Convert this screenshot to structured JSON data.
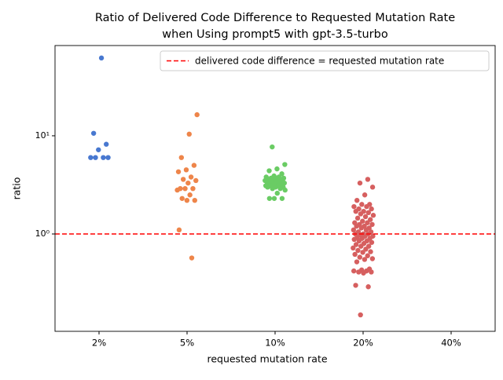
{
  "chart_data": {
    "type": "strip",
    "title": [
      "Ratio of Delivered Code Difference to Requested Mutation Rate",
      "when Using prompt5 with gpt-3.5-turbo"
    ],
    "x_label": "requested mutation rate",
    "y_label": "ratio",
    "categories": [
      "2%",
      "5%",
      "10%",
      "20%",
      "40%"
    ],
    "colors": [
      "#4878d0",
      "#ee854a",
      "#6acc64",
      "#d65f5f",
      "#956cb4"
    ],
    "values": [
      [
        62,
        10.6,
        8.2,
        7.2,
        6.0,
        6.0,
        6.0,
        6.0
      ],
      [
        16.4,
        10.4,
        6.0,
        5.0,
        4.5,
        4.3,
        3.8,
        3.6,
        3.5,
        3.3,
        2.9,
        2.9,
        2.9,
        2.8,
        2.5,
        2.3,
        2.2,
        2.2,
        1.1,
        0.57
      ],
      [
        7.7,
        5.1,
        4.6,
        4.4,
        4.1,
        3.9,
        3.8,
        3.8,
        3.7,
        3.7,
        3.7,
        3.6,
        3.6,
        3.6,
        3.5,
        3.5,
        3.5,
        3.5,
        3.4,
        3.4,
        3.4,
        3.3,
        3.3,
        3.3,
        3.2,
        3.2,
        3.2,
        3.1,
        3.1,
        3.1,
        3.0,
        3.0,
        3.0,
        2.9,
        2.9,
        2.8,
        2.6,
        2.3,
        2.3,
        2.3
      ],
      [
        3.6,
        3.3,
        3.0,
        2.5,
        2.2,
        2.0,
        2.0,
        1.9,
        1.9,
        1.8,
        1.8,
        1.7,
        1.7,
        1.65,
        1.6,
        1.55,
        1.5,
        1.45,
        1.4,
        1.35,
        1.3,
        1.3,
        1.25,
        1.25,
        1.2,
        1.2,
        1.15,
        1.15,
        1.1,
        1.1,
        1.05,
        1.05,
        1.0,
        1.0,
        1.0,
        0.98,
        0.95,
        0.95,
        0.92,
        0.9,
        0.9,
        0.88,
        0.85,
        0.85,
        0.82,
        0.8,
        0.78,
        0.75,
        0.75,
        0.72,
        0.7,
        0.68,
        0.66,
        0.65,
        0.62,
        0.6,
        0.58,
        0.56,
        0.55,
        0.52,
        0.44,
        0.43,
        0.42,
        0.42,
        0.41,
        0.41,
        0.4,
        0.3,
        0.29,
        0.15
      ],
      []
    ],
    "log_y": true,
    "ylim": [
      0.102,
      83
    ],
    "yticks": [
      {
        "value": 1,
        "label": "10⁰"
      },
      {
        "value": 10,
        "label": "10¹"
      }
    ],
    "reference_line": {
      "value": 1,
      "label": "delivered code difference = requested mutation rate",
      "color": "#ff0000"
    },
    "legend": "upper right"
  }
}
